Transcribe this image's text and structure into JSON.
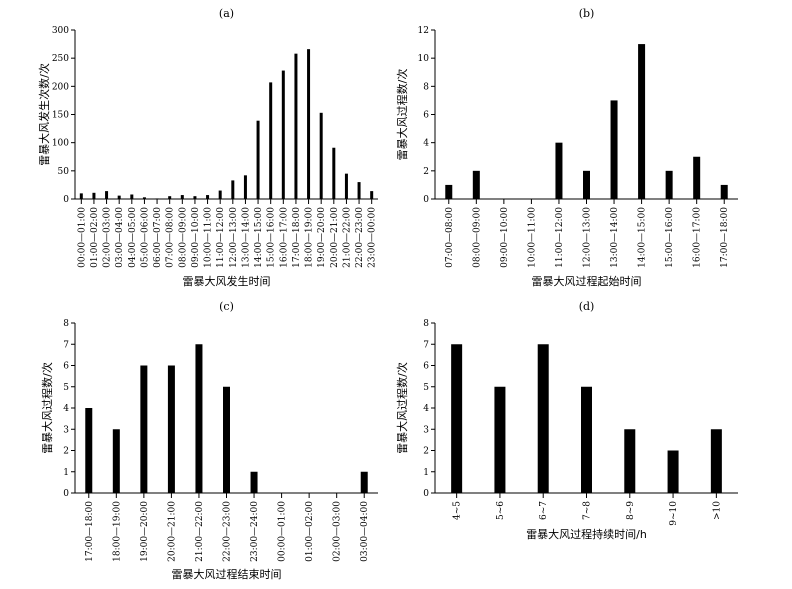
{
  "chart_data": [
    {
      "type": "bar",
      "title": "(a)",
      "xlabel": "雷暴大风发生时间",
      "ylabel": "雷暴大风发生次数/次",
      "ylim": [
        0,
        300
      ],
      "yticks": [
        0,
        50,
        100,
        150,
        200,
        250,
        300
      ],
      "categories": [
        "00:00—01:00",
        "01:00—02:00",
        "02:00—03:00",
        "03:00—04:00",
        "04:00—05:00",
        "05:00—06:00",
        "06:00—07:00",
        "07:00—08:00",
        "08:00—09:00",
        "09:00—10:00",
        "10:00—11:00",
        "11:00—12:00",
        "12:00—13:00",
        "13:00—14:00",
        "14:00—15:00",
        "15:00—16:00",
        "16:00—17:00",
        "17:00—18:00",
        "18:00—19:00",
        "19:00—20:00",
        "20:00—21:00",
        "21:00—22:00",
        "22:00—23:00",
        "23:00—00:00"
      ],
      "values": [
        10,
        11,
        14,
        6,
        8,
        3,
        1,
        5,
        7,
        5,
        7,
        15,
        33,
        42,
        139,
        207,
        228,
        258,
        266,
        153,
        91,
        45,
        30,
        14
      ]
    },
    {
      "type": "bar",
      "title": "(b)",
      "xlabel": "雷暴大风过程起始时间",
      "ylabel": "雷暴大风过程数/次",
      "ylim": [
        0,
        12
      ],
      "yticks": [
        0,
        2,
        4,
        6,
        8,
        10,
        12
      ],
      "categories": [
        "07:00—08:00",
        "08:00—09:00",
        "09:00—10:00",
        "10:00—11:00",
        "11:00—12:00",
        "12:00—13:00",
        "13:00—14:00",
        "14:00—15:00",
        "15:00—16:00",
        "16:00—17:00",
        "17:00—18:00"
      ],
      "values": [
        1,
        2,
        0,
        0,
        4,
        2,
        7,
        11,
        2,
        3,
        1
      ]
    },
    {
      "type": "bar",
      "title": "(c)",
      "xlabel": "雷暴大风过程结束时间",
      "ylabel": "雷暴大风过程数/次",
      "ylim": [
        0,
        8
      ],
      "yticks": [
        0,
        1,
        2,
        3,
        4,
        5,
        6,
        7,
        8
      ],
      "categories": [
        "17:00—18:00",
        "18:00—19:00",
        "19:00—20:00",
        "20:00—21:00",
        "21:00—22:00",
        "22:00—23:00",
        "23:00—24:00",
        "00:00—01:00",
        "01:00—02:00",
        "02:00—03:00",
        "03:00—04:00"
      ],
      "values": [
        4,
        3,
        6,
        6,
        7,
        5,
        1,
        0,
        0,
        0,
        1
      ]
    },
    {
      "type": "bar",
      "title": "(d)",
      "xlabel": "雷暴大风过程持续时间/h",
      "ylabel": "雷暴大风过程数/次",
      "ylim": [
        0,
        8
      ],
      "yticks": [
        0,
        1,
        2,
        3,
        4,
        5,
        6,
        7,
        8
      ],
      "categories": [
        "4~5",
        "5~6",
        "6~7",
        "7~8",
        "8~9",
        "9~10",
        ">10"
      ],
      "values": [
        7,
        5,
        7,
        5,
        3,
        2,
        3
      ]
    }
  ]
}
